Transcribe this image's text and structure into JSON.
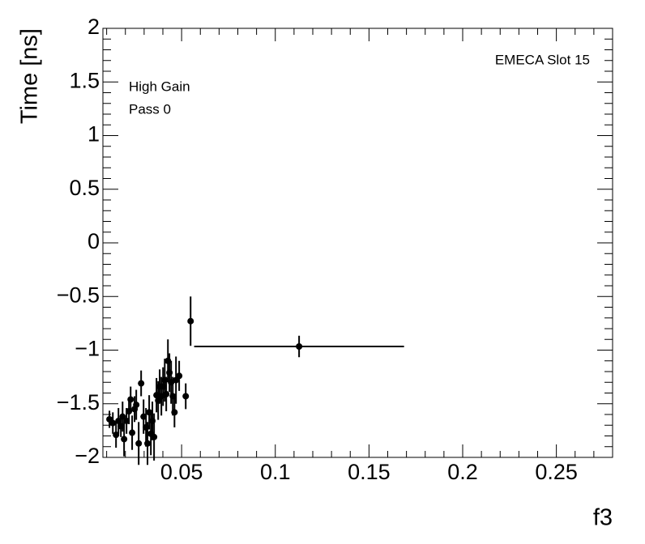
{
  "chart_data": {
    "type": "scatter",
    "title": "EMECA Slot 15",
    "annotations": [
      "High Gain",
      "Pass 0"
    ],
    "x_label": "f3",
    "y_label": "Time [ns]",
    "color": "#000000",
    "x": [
      0.0115,
      0.0133,
      0.015,
      0.0163,
      0.0176,
      0.0185,
      0.0193,
      0.0206,
      0.0219,
      0.0228,
      0.0236,
      0.0249,
      0.0258,
      0.0271,
      0.0284,
      0.0297,
      0.031,
      0.0318,
      0.0327,
      0.0336,
      0.0344,
      0.0353,
      0.0366,
      0.0375,
      0.0383,
      0.0392,
      0.0401,
      0.041,
      0.0418,
      0.0427,
      0.0435,
      0.0444,
      0.0453,
      0.0462,
      0.047,
      0.0487,
      0.0522,
      0.0548,
      0.1127
    ],
    "values": [
      -1.645,
      -1.68,
      -1.79,
      -1.66,
      -1.71,
      -1.62,
      -1.83,
      -1.66,
      -1.57,
      -1.46,
      -1.77,
      -1.55,
      -1.51,
      -1.87,
      -1.31,
      -1.62,
      -1.72,
      -1.87,
      -1.58,
      -1.78,
      -1.66,
      -1.81,
      -1.42,
      -1.47,
      -1.34,
      -1.43,
      -1.34,
      -1.28,
      -1.41,
      -1.1,
      -1.21,
      -1.3,
      -1.43,
      -1.58,
      -1.28,
      -1.24,
      -1.43,
      -0.73,
      -0.966
    ],
    "yerr": [
      0.08,
      0.1,
      0.12,
      0.12,
      0.1,
      0.14,
      0.16,
      0.12,
      0.12,
      0.12,
      0.16,
      0.12,
      0.14,
      0.2,
      0.12,
      0.16,
      0.18,
      0.2,
      0.16,
      0.2,
      0.18,
      0.22,
      0.16,
      0.18,
      0.16,
      0.18,
      0.18,
      0.2,
      0.16,
      0.2,
      0.18,
      0.2,
      0.18,
      0.14,
      0.22,
      0.14,
      0.12,
      0.23,
      0.1
    ],
    "xerr": [
      0.001,
      0.001,
      0.001,
      0.001,
      0.001,
      0.001,
      0.001,
      0.001,
      0.001,
      0.001,
      0.001,
      0.001,
      0.001,
      0.001,
      0.001,
      0.001,
      0.001,
      0.001,
      0.001,
      0.001,
      0.001,
      0.001,
      0.001,
      0.001,
      0.001,
      0.001,
      0.001,
      0.001,
      0.001,
      0.001,
      0.001,
      0.001,
      0.001,
      0.001,
      0.001,
      0.001,
      0.001,
      0.001,
      0.056
    ],
    "xlim": [
      0.008,
      0.28
    ],
    "xticks": [
      0.05,
      0.1,
      0.15,
      0.2,
      0.25
    ],
    "ylim": [
      -2,
      2
    ],
    "yticks": [
      {
        "value": -2,
        "label": "−2"
      },
      {
        "value": -1.5,
        "label": "−1.5"
      },
      {
        "value": -1,
        "label": "−1"
      },
      {
        "value": -0.5,
        "label": "−0.5"
      },
      0,
      0.5,
      1,
      1.5,
      2
    ],
    "grid": false
  }
}
